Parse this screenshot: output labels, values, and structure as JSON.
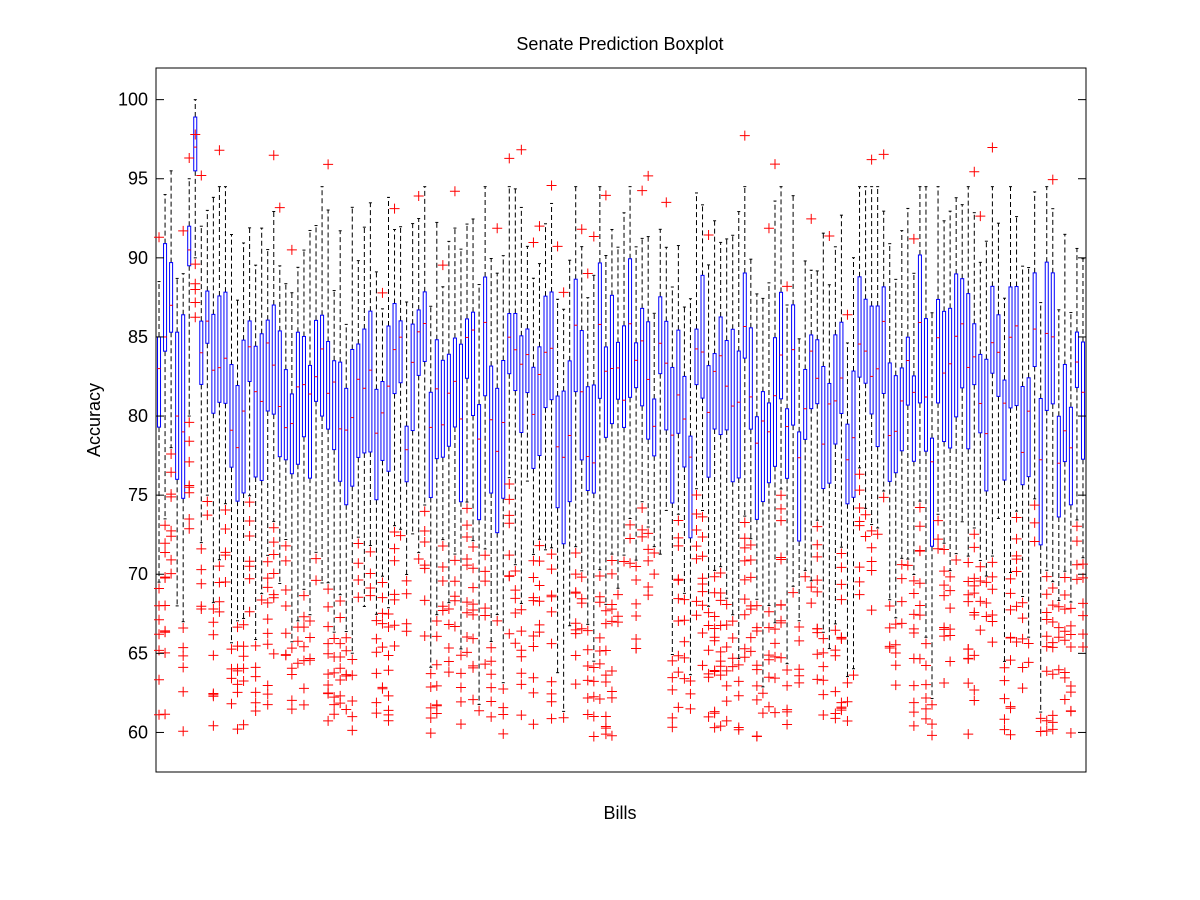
{
  "chart_data": {
    "type": "boxplot",
    "title": "Senate Prediction Boxplot",
    "xlabel": "Bills",
    "ylabel": "Accuracy",
    "ylim": [
      57.5,
      102
    ],
    "yticks": [
      60,
      65,
      70,
      75,
      80,
      85,
      90,
      95,
      100
    ],
    "grid": false,
    "x_tick_labels_unreadable": true,
    "box_color": "#0000ff",
    "whisker_color": "#000000",
    "outlier_color": "#ff0000",
    "outlier_marker": "+",
    "num_bills": 154,
    "boxes_sample": [
      {
        "q1": 79.3,
        "median": 83.0,
        "q3": 85.0,
        "whislo": 69.5,
        "whishi": 88.5
      },
      {
        "q1": 84.1,
        "median": 85.0,
        "q3": 90.9,
        "whislo": 73.5,
        "whishi": 94.0
      },
      {
        "q1": 85.3,
        "median": 87.0,
        "q3": 89.7,
        "whislo": 78.0,
        "whishi": 95.5
      },
      {
        "q1": 76.0,
        "median": 80.0,
        "q3": 85.3,
        "whislo": 68.0,
        "whishi": 88.7
      },
      {
        "q1": 74.8,
        "median": 79.0,
        "q3": 86.4,
        "whislo": 67.0,
        "whishi": 89.0
      },
      {
        "q1": 89.5,
        "median": 90.5,
        "q3": 92.0,
        "whislo": 80.0,
        "whishi": 95.0
      },
      {
        "q1": 95.5,
        "median": 97.0,
        "q3": 98.9,
        "whislo": 90.0,
        "whishi": 100.0
      },
      {
        "q1": 82.0,
        "median": 84.0,
        "q3": 86.0,
        "whislo": 72.0,
        "whishi": 92.0
      },
      {
        "q1": 84.6,
        "median": 86.0,
        "q3": 87.9,
        "whislo": 75.0,
        "whishi": 93.0
      }
    ],
    "outlier_range": [
      59.7,
      97.8
    ]
  }
}
